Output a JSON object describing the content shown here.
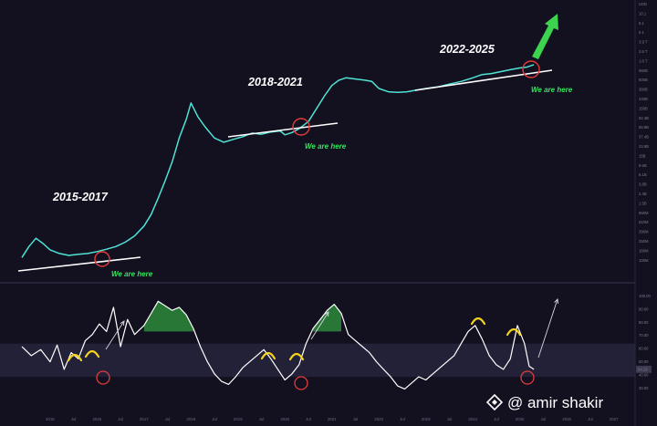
{
  "chart_data": [
    {
      "type": "line",
      "title": "",
      "xlabel": "",
      "ylabel": "",
      "currency": "USD",
      "x": [
        2014.4,
        2014.55,
        2014.7,
        2014.85,
        2015.0,
        2015.2,
        2015.4,
        2015.6,
        2015.8,
        2016.0,
        2016.2,
        2016.4,
        2016.6,
        2016.8,
        2017.0,
        2017.15,
        2017.3,
        2017.45,
        2017.6,
        2017.75,
        2017.9,
        2018.0,
        2018.15,
        2018.3,
        2018.5,
        2018.7,
        2018.9,
        2019.1,
        2019.3,
        2019.5,
        2019.7,
        2019.9,
        2020.0,
        2020.15,
        2020.3,
        2020.5,
        2020.7,
        2020.85,
        2021.0,
        2021.15,
        2021.3,
        2021.5,
        2021.7,
        2021.85,
        2022.0,
        2022.2,
        2022.4,
        2022.6,
        2022.8,
        2023.0,
        2023.25,
        2023.5,
        2023.75,
        2024.0,
        2024.2,
        2024.4,
        2024.6,
        2024.8,
        2025.0,
        2025.15,
        2025.3
      ],
      "series": [
        {
          "values": [
            8,
            11,
            14,
            12,
            10,
            9,
            8.5,
            8.8,
            9,
            9.5,
            10.2,
            11,
            12.5,
            15,
            20,
            28,
            45,
            75,
            130,
            260,
            450,
            720,
            480,
            360,
            260,
            230,
            250,
            270,
            300,
            290,
            310,
            320,
            285,
            305,
            340,
            420,
            650,
            900,
            1200,
            1400,
            1500,
            1450,
            1400,
            1350,
            1100,
            1000,
            980,
            1000,
            1050,
            1100,
            1150,
            1250,
            1350,
            1500,
            1650,
            1700,
            1800,
            1900,
            2000,
            2050,
            2200
          ]
        }
      ],
      "annotations": [
        {
          "text": "2015-2017"
        },
        {
          "text": "2018-2021"
        },
        {
          "text": "2022-2025"
        },
        {
          "text": "We are here"
        },
        {
          "text": "We are here"
        },
        {
          "text": "We are here"
        }
      ],
      "y_tick_labels": [
        "USD",
        "10.1",
        "8.1",
        "6.1",
        "3.9 T",
        "2.6 T",
        "1.6 T",
        "960B",
        "600B",
        "380B",
        "240B",
        "150B",
        "92.4B",
        "58.8B",
        "37.4B",
        "23.8B",
        "15B",
        "9.6B",
        "6.1B",
        "3.8B",
        "2.4B",
        "1.5B",
        "960M",
        "610M",
        "390M",
        "250M",
        "160M",
        "100M"
      ],
      "scale": "log",
      "grid": false
    },
    {
      "type": "line",
      "title": "",
      "xlabel": "",
      "ylabel": "",
      "x": [
        2014.4,
        2014.6,
        2014.8,
        2015.0,
        2015.15,
        2015.3,
        2015.45,
        2015.6,
        2015.75,
        2015.9,
        2016.05,
        2016.2,
        2016.35,
        2016.5,
        2016.65,
        2016.8,
        2017.0,
        2017.15,
        2017.3,
        2017.45,
        2017.6,
        2017.75,
        2017.9,
        2018.05,
        2018.2,
        2018.35,
        2018.5,
        2018.65,
        2018.8,
        2018.95,
        2019.1,
        2019.25,
        2019.4,
        2019.55,
        2019.7,
        2019.85,
        2020.0,
        2020.15,
        2020.3,
        2020.45,
        2020.6,
        2020.75,
        2020.9,
        2021.05,
        2021.2,
        2021.35,
        2021.5,
        2021.65,
        2021.8,
        2021.95,
        2022.1,
        2022.25,
        2022.4,
        2022.55,
        2022.7,
        2022.85,
        2023.0,
        2023.15,
        2023.3,
        2023.45,
        2023.6,
        2023.75,
        2023.9,
        2024.05,
        2024.2,
        2024.35,
        2024.5,
        2024.65,
        2024.8,
        2024.95,
        2025.1,
        2025.2,
        2025.3
      ],
      "series": [
        {
          "values": [
            70,
            64,
            68,
            60,
            71,
            55,
            66,
            62,
            74,
            78,
            85,
            80,
            96,
            70,
            88,
            78,
            84,
            92,
            100,
            97,
            94,
            96,
            91,
            82,
            70,
            60,
            52,
            47,
            45,
            50,
            56,
            60,
            64,
            68,
            62,
            55,
            48,
            52,
            58,
            72,
            82,
            88,
            94,
            98,
            92,
            78,
            74,
            70,
            66,
            60,
            55,
            50,
            44,
            42,
            46,
            50,
            48,
            52,
            56,
            60,
            64,
            72,
            80,
            84,
            75,
            64,
            58,
            55,
            62,
            84,
            72,
            57,
            55
          ]
        }
      ],
      "y_tick_labels": [
        "100.00",
        "90.00",
        "80.00",
        "70.00",
        "60.00",
        "50.00",
        "40.00",
        "30.00"
      ],
      "value_label": "54.13",
      "grid": false
    }
  ],
  "x_tick_labels": [
    "2015",
    "Jul",
    "2016",
    "Jul",
    "2017",
    "Jul",
    "2018",
    "Jul",
    "2019",
    "Jul",
    "2020",
    "Jul",
    "2021",
    "Jul",
    "2022",
    "Jul",
    "2023",
    "Jul",
    "2024",
    "Jul",
    "2025",
    "Jul",
    "2026",
    "Jul",
    "2027",
    "Jul"
  ],
  "watermark": {
    "text": "@ amir shakir",
    "logo_icon": "binance-diamond-icon"
  },
  "colors": {
    "price_line": "#4fe3d6",
    "support_line": "#ffffff",
    "osc_line": "#ffffff",
    "osc_fill_high": "#2e8a3b",
    "arc": "#f5d31e",
    "circle": "#e23c3c",
    "target_arrow": "#3cd34e",
    "band": "#2a2740",
    "background": "#13101f"
  }
}
